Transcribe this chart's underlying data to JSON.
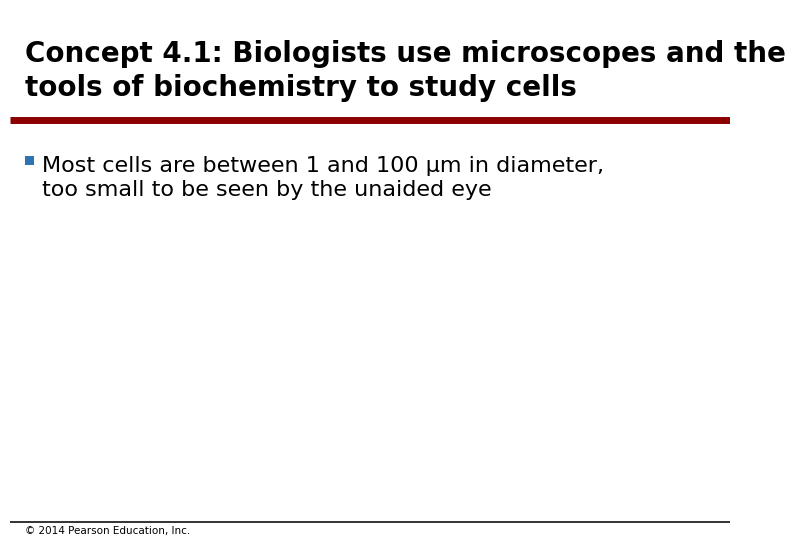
{
  "title_line1": "Concept 4.1: Biologists use microscopes and the",
  "title_line2": "tools of biochemistry to study cells",
  "title_color": "#000000",
  "title_fontsize": 20,
  "red_line_color": "#8B0000",
  "black_line_color": "#111111",
  "bullet_color": "#2E74B5",
  "bullet_text_line1": "Most cells are between 1 and 100 μm in diameter,",
  "bullet_text_line2": "too small to be seen by the unaided eye",
  "bullet_fontsize": 16,
  "footer_text": "© 2014 Pearson Education, Inc.",
  "footer_fontsize": 7.5,
  "background_color": "#FFFFFF"
}
